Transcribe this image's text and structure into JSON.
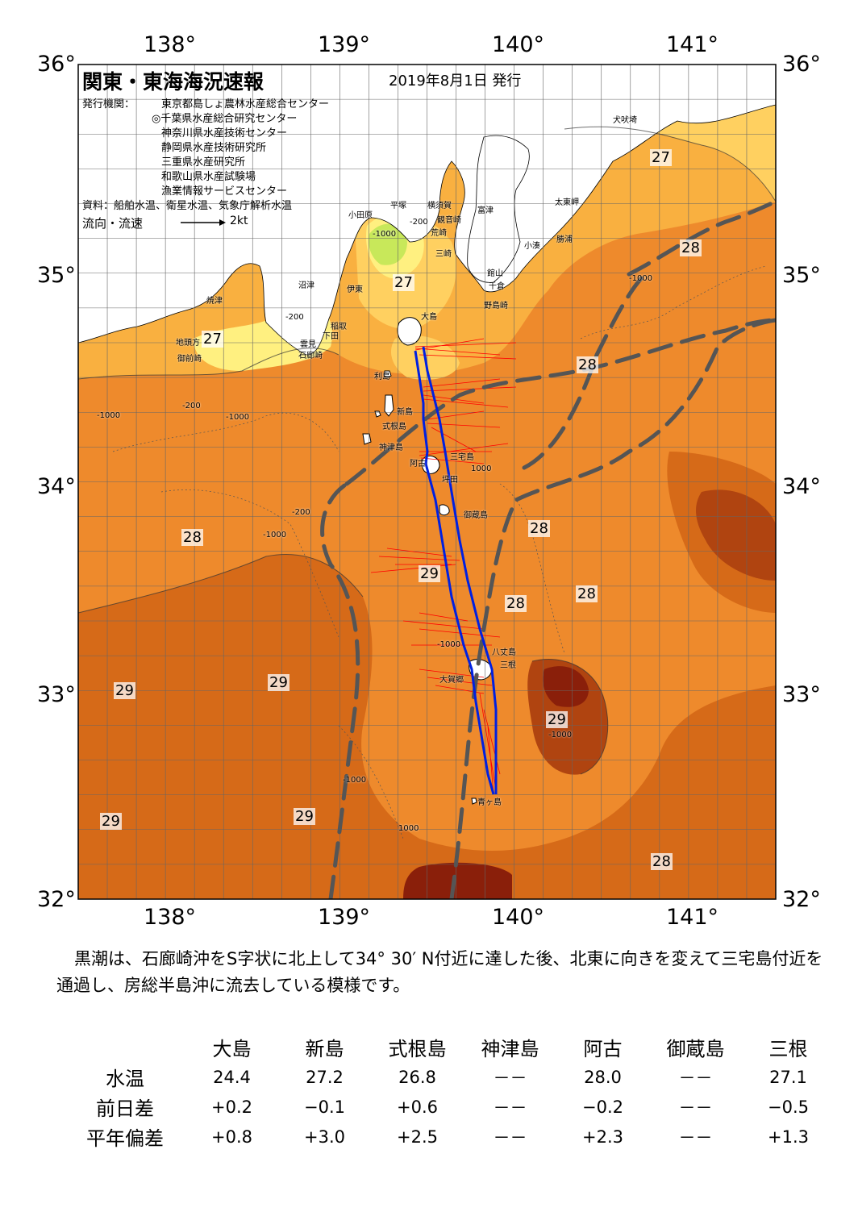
{
  "map": {
    "title": "関東・東海海況速報",
    "issue_date": "2019年8月1日 発行",
    "issuers_label": "発行機関：",
    "issuers": [
      "東京都島しょ農林水産総合センター",
      "◎千葉県水産総合研究センター",
      "神奈川県水産技術センター",
      "静岡県水産技術研究所",
      "三重県水産研究所",
      "和歌山県水産試験場",
      "漁業情報サービスセンター"
    ],
    "sources": "資料：船舶水温、衛星水温、気象庁解析水温",
    "flow_legend": "流向・流速",
    "flow_scale": "2kt",
    "lon_labels": [
      "138°",
      "139°",
      "140°",
      "141°"
    ],
    "lat_labels": [
      "36°",
      "35°",
      "34°",
      "33°",
      "32°"
    ],
    "extent": {
      "lon": [
        137.5,
        141.5
      ],
      "lat": [
        32,
        36
      ]
    },
    "place_names": [
      "犬吠埼",
      "太東岬",
      "勝浦",
      "小湊",
      "富津",
      "横須賀",
      "観音崎",
      "平塚",
      "小田原",
      "荒崎",
      "三崎",
      "館山",
      "千倉",
      "野島崎",
      "伊東",
      "沼津",
      "焼津",
      "稲取",
      "下田",
      "雲見",
      "石廊崎",
      "地頭方",
      "御前崎",
      "大島",
      "利島",
      "新島",
      "式根島",
      "神津島",
      "阿古",
      "三宅島",
      "坪田",
      "御蔵島",
      "八丈島",
      "三根",
      "大賀郷",
      "青ヶ島"
    ],
    "isotherm_labels": [
      "27",
      "27",
      "27",
      "28",
      "28",
      "28",
      "28",
      "28",
      "28",
      "28",
      "29",
      "29",
      "29",
      "29",
      "29",
      "29"
    ],
    "depth_labels": [
      "-200",
      "-1000",
      "-200",
      "-1000",
      "-200",
      "-1000",
      "-1000",
      "-1000",
      "-200",
      "1000",
      "-1000",
      "-1000",
      "1000",
      "-1000"
    ],
    "colors": {
      "t24": "#c8e85a",
      "t25": "#fff080",
      "t26": "#ffd060",
      "t27": "#f9b040",
      "t28": "#ee8a2c",
      "t29": "#d66a18",
      "t30": "#b04410",
      "t31": "#8a1f0a",
      "kuroshio_axis": "#555555",
      "ship_track": "#0020e0",
      "current_vector": "#ff0000"
    }
  },
  "description": "黒潮は、石廊崎沖をS字状に北上して34° 30′ N付近に達した後、北東に向きを変えて三宅島付近を通過し、房総半島沖に流去している模様です。",
  "table": {
    "stations": [
      "大島",
      "新島",
      "式根島",
      "神津島",
      "阿古",
      "御蔵島",
      "三根"
    ],
    "rows": [
      {
        "label": "水温",
        "values": [
          "24.4",
          "27.2",
          "26.8",
          "－－",
          "28.0",
          "－－",
          "27.1"
        ]
      },
      {
        "label": "前日差",
        "values": [
          "+0.2",
          "−0.1",
          "+0.6",
          "－－",
          "−0.2",
          "－－",
          "−0.5"
        ]
      },
      {
        "label": "平年偏差",
        "values": [
          "+0.8",
          "+3.0",
          "+2.5",
          "－－",
          "+2.3",
          "－－",
          "+1.3"
        ]
      }
    ]
  }
}
